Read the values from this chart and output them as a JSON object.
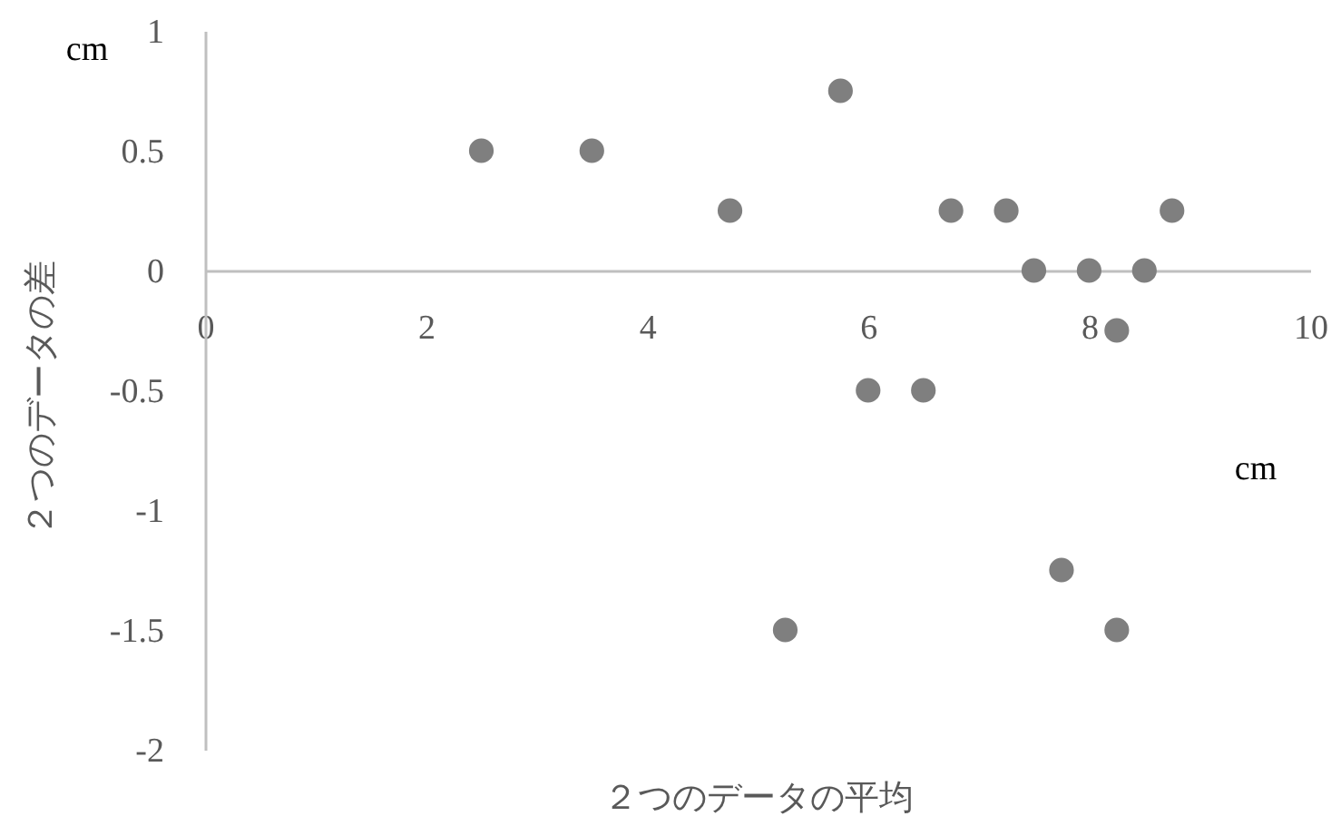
{
  "chart_data": {
    "type": "scatter",
    "xlabel": "２つのデータの平均",
    "ylabel": "２つのデータの差",
    "annotations": [
      "cm",
      "cm"
    ],
    "x": [
      2.5,
      3.5,
      4.75,
      5.25,
      5.75,
      6,
      6.5,
      6.75,
      7.25,
      7.5,
      7.75,
      8,
      8.25,
      8.25,
      8.5,
      8.75
    ],
    "values": [
      0.5,
      0.5,
      0.25,
      -1.5,
      0.75,
      -0.5,
      -0.5,
      0.25,
      0.25,
      0,
      -1.25,
      0,
      -0.25,
      -1.5,
      0,
      0.25
    ],
    "color": "#7f7f7f",
    "marker": "circle",
    "grid": false,
    "xlim": [
      0,
      10
    ],
    "xticks": [
      0,
      2,
      4,
      6,
      8,
      10
    ],
    "ylim": [
      -2,
      1
    ],
    "yticks": [
      -2,
      -1.5,
      -1,
      -0.5,
      0,
      0.5,
      1
    ]
  }
}
